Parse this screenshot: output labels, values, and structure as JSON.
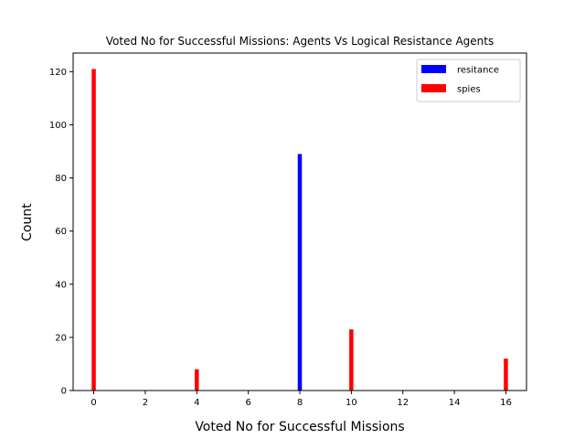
{
  "chart_data": {
    "type": "bar",
    "title": "Voted No for Successful Missions: Agents Vs Logical Resistance Agents",
    "xlabel": "Voted No for Successful Missions",
    "ylabel": "Count",
    "xlim": [
      -0.8,
      16.8
    ],
    "ylim": [
      0,
      127
    ],
    "xticks": [
      0,
      2,
      4,
      6,
      8,
      10,
      12,
      14,
      16
    ],
    "yticks": [
      0,
      20,
      40,
      60,
      80,
      100,
      120
    ],
    "bar_width": 0.16,
    "legend_position": "top-right",
    "series": [
      {
        "name": "resitance",
        "color": "#0000ff",
        "x": [
          8
        ],
        "values": [
          89
        ]
      },
      {
        "name": "spies",
        "color": "#ff0000",
        "x": [
          0,
          4,
          10,
          16
        ],
        "values": [
          121,
          8,
          23,
          12
        ]
      }
    ]
  }
}
